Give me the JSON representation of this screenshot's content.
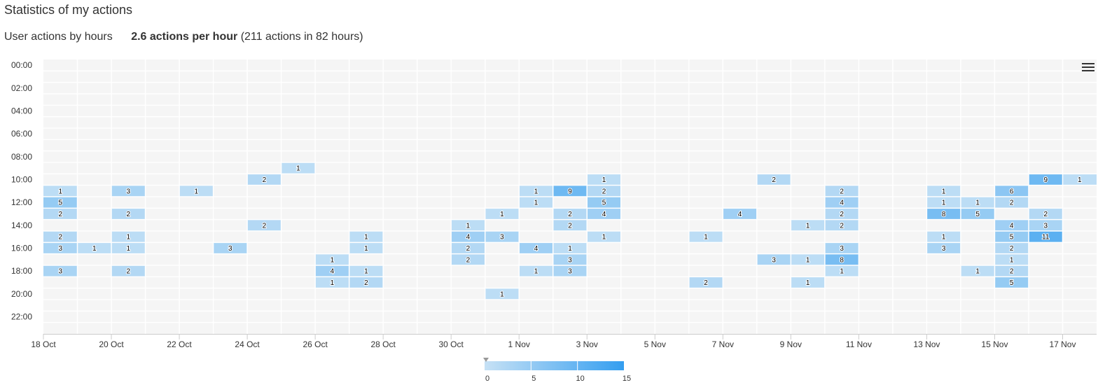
{
  "page": {
    "title": "Statistics of my actions",
    "subtitle_label": "User actions by hours",
    "rate": "2.6 actions per hour",
    "rate_detail": "(211 actions in 82 hours)"
  },
  "chart_data": {
    "type": "heatmap",
    "x_categories": [
      "18 Oct",
      "19 Oct",
      "20 Oct",
      "21 Oct",
      "22 Oct",
      "23 Oct",
      "24 Oct",
      "25 Oct",
      "26 Oct",
      "27 Oct",
      "28 Oct",
      "29 Oct",
      "30 Oct",
      "31 Oct",
      "1 Nov",
      "2 Nov",
      "3 Nov",
      "4 Nov",
      "5 Nov",
      "6 Nov",
      "7 Nov",
      "8 Nov",
      "9 Nov",
      "10 Nov",
      "11 Nov",
      "12 Nov",
      "13 Nov",
      "14 Nov",
      "15 Nov",
      "16 Nov",
      "17 Nov"
    ],
    "x_tick_labels": [
      "18 Oct",
      "20 Oct",
      "22 Oct",
      "24 Oct",
      "26 Oct",
      "28 Oct",
      "30 Oct",
      "1 Nov",
      "3 Nov",
      "5 Nov",
      "7 Nov",
      "9 Nov",
      "11 Nov",
      "13 Nov",
      "15 Nov",
      "17 Nov"
    ],
    "y_categories": [
      "00:00",
      "01:00",
      "02:00",
      "03:00",
      "04:00",
      "05:00",
      "06:00",
      "07:00",
      "08:00",
      "09:00",
      "10:00",
      "11:00",
      "12:00",
      "13:00",
      "14:00",
      "15:00",
      "16:00",
      "17:00",
      "18:00",
      "19:00",
      "20:00",
      "21:00",
      "22:00",
      "23:00"
    ],
    "y_tick_labels": [
      "00:00",
      "02:00",
      "04:00",
      "06:00",
      "08:00",
      "10:00",
      "12:00",
      "14:00",
      "16:00",
      "18:00",
      "20:00",
      "22:00"
    ],
    "points": [
      {
        "x": "25 Oct",
        "y": "09:00",
        "value": 1
      },
      {
        "x": "24 Oct",
        "y": "10:00",
        "value": 2
      },
      {
        "x": "3 Nov",
        "y": "10:00",
        "value": 1
      },
      {
        "x": "8 Nov",
        "y": "10:00",
        "value": 2
      },
      {
        "x": "16 Nov",
        "y": "10:00",
        "value": 9
      },
      {
        "x": "17 Nov",
        "y": "10:00",
        "value": 1
      },
      {
        "x": "18 Oct",
        "y": "11:00",
        "value": 1
      },
      {
        "x": "20 Oct",
        "y": "11:00",
        "value": 3
      },
      {
        "x": "22 Oct",
        "y": "11:00",
        "value": 1
      },
      {
        "x": "1 Nov",
        "y": "11:00",
        "value": 1
      },
      {
        "x": "2 Nov",
        "y": "11:00",
        "value": 9
      },
      {
        "x": "3 Nov",
        "y": "11:00",
        "value": 2
      },
      {
        "x": "10 Nov",
        "y": "11:00",
        "value": 2
      },
      {
        "x": "13 Nov",
        "y": "11:00",
        "value": 1
      },
      {
        "x": "15 Nov",
        "y": "11:00",
        "value": 6
      },
      {
        "x": "18 Oct",
        "y": "12:00",
        "value": 5
      },
      {
        "x": "1 Nov",
        "y": "12:00",
        "value": 1
      },
      {
        "x": "3 Nov",
        "y": "12:00",
        "value": 5
      },
      {
        "x": "10 Nov",
        "y": "12:00",
        "value": 4
      },
      {
        "x": "13 Nov",
        "y": "12:00",
        "value": 1
      },
      {
        "x": "14 Nov",
        "y": "12:00",
        "value": 1
      },
      {
        "x": "15 Nov",
        "y": "12:00",
        "value": 2
      },
      {
        "x": "18 Oct",
        "y": "13:00",
        "value": 2
      },
      {
        "x": "20 Oct",
        "y": "13:00",
        "value": 2
      },
      {
        "x": "31 Oct",
        "y": "13:00",
        "value": 1
      },
      {
        "x": "2 Nov",
        "y": "13:00",
        "value": 2
      },
      {
        "x": "3 Nov",
        "y": "13:00",
        "value": 4
      },
      {
        "x": "7 Nov",
        "y": "13:00",
        "value": 4
      },
      {
        "x": "10 Nov",
        "y": "13:00",
        "value": 2
      },
      {
        "x": "13 Nov",
        "y": "13:00",
        "value": 8
      },
      {
        "x": "14 Nov",
        "y": "13:00",
        "value": 5
      },
      {
        "x": "16 Nov",
        "y": "13:00",
        "value": 2
      },
      {
        "x": "24 Oct",
        "y": "14:00",
        "value": 2
      },
      {
        "x": "30 Oct",
        "y": "14:00",
        "value": 1
      },
      {
        "x": "2 Nov",
        "y": "14:00",
        "value": 2
      },
      {
        "x": "9 Nov",
        "y": "14:00",
        "value": 1
      },
      {
        "x": "10 Nov",
        "y": "14:00",
        "value": 2
      },
      {
        "x": "15 Nov",
        "y": "14:00",
        "value": 4
      },
      {
        "x": "16 Nov",
        "y": "14:00",
        "value": 3
      },
      {
        "x": "18 Oct",
        "y": "15:00",
        "value": 2
      },
      {
        "x": "20 Oct",
        "y": "15:00",
        "value": 1
      },
      {
        "x": "27 Oct",
        "y": "15:00",
        "value": 1
      },
      {
        "x": "30 Oct",
        "y": "15:00",
        "value": 4
      },
      {
        "x": "31 Oct",
        "y": "15:00",
        "value": 3
      },
      {
        "x": "3 Nov",
        "y": "15:00",
        "value": 1
      },
      {
        "x": "6 Nov",
        "y": "15:00",
        "value": 1
      },
      {
        "x": "13 Nov",
        "y": "15:00",
        "value": 1
      },
      {
        "x": "15 Nov",
        "y": "15:00",
        "value": 5
      },
      {
        "x": "16 Nov",
        "y": "15:00",
        "value": 11
      },
      {
        "x": "18 Oct",
        "y": "16:00",
        "value": 3
      },
      {
        "x": "19 Oct",
        "y": "16:00",
        "value": 1
      },
      {
        "x": "20 Oct",
        "y": "16:00",
        "value": 1
      },
      {
        "x": "23 Oct",
        "y": "16:00",
        "value": 3
      },
      {
        "x": "27 Oct",
        "y": "16:00",
        "value": 1
      },
      {
        "x": "30 Oct",
        "y": "16:00",
        "value": 2
      },
      {
        "x": "1 Nov",
        "y": "16:00",
        "value": 4
      },
      {
        "x": "2 Nov",
        "y": "16:00",
        "value": 1
      },
      {
        "x": "10 Nov",
        "y": "16:00",
        "value": 3
      },
      {
        "x": "13 Nov",
        "y": "16:00",
        "value": 3
      },
      {
        "x": "15 Nov",
        "y": "16:00",
        "value": 2
      },
      {
        "x": "26 Oct",
        "y": "17:00",
        "value": 1
      },
      {
        "x": "30 Oct",
        "y": "17:00",
        "value": 2
      },
      {
        "x": "2 Nov",
        "y": "17:00",
        "value": 3
      },
      {
        "x": "8 Nov",
        "y": "17:00",
        "value": 3
      },
      {
        "x": "9 Nov",
        "y": "17:00",
        "value": 1
      },
      {
        "x": "10 Nov",
        "y": "17:00",
        "value": 8
      },
      {
        "x": "15 Nov",
        "y": "17:00",
        "value": 1
      },
      {
        "x": "18 Oct",
        "y": "18:00",
        "value": 3
      },
      {
        "x": "20 Oct",
        "y": "18:00",
        "value": 2
      },
      {
        "x": "26 Oct",
        "y": "18:00",
        "value": 4
      },
      {
        "x": "27 Oct",
        "y": "18:00",
        "value": 1
      },
      {
        "x": "1 Nov",
        "y": "18:00",
        "value": 1
      },
      {
        "x": "2 Nov",
        "y": "18:00",
        "value": 3
      },
      {
        "x": "10 Nov",
        "y": "18:00",
        "value": 1
      },
      {
        "x": "14 Nov",
        "y": "18:00",
        "value": 1
      },
      {
        "x": "15 Nov",
        "y": "18:00",
        "value": 2
      },
      {
        "x": "26 Oct",
        "y": "19:00",
        "value": 1
      },
      {
        "x": "27 Oct",
        "y": "19:00",
        "value": 2
      },
      {
        "x": "6 Nov",
        "y": "19:00",
        "value": 2
      },
      {
        "x": "9 Nov",
        "y": "19:00",
        "value": 1
      },
      {
        "x": "15 Nov",
        "y": "19:00",
        "value": 5
      },
      {
        "x": "31 Oct",
        "y": "20:00",
        "value": 1
      }
    ],
    "color_axis": {
      "min": 0,
      "max": 15,
      "tick_labels": [
        "0",
        "5",
        "10",
        "15"
      ],
      "min_color": "#c6e1f5",
      "max_color": "#349ef0",
      "empty_color": "#f5f5f5",
      "placement": "bottom-center"
    },
    "grid": true
  },
  "toolbar": {
    "menu_icon": "hamburger-menu-icon"
  }
}
